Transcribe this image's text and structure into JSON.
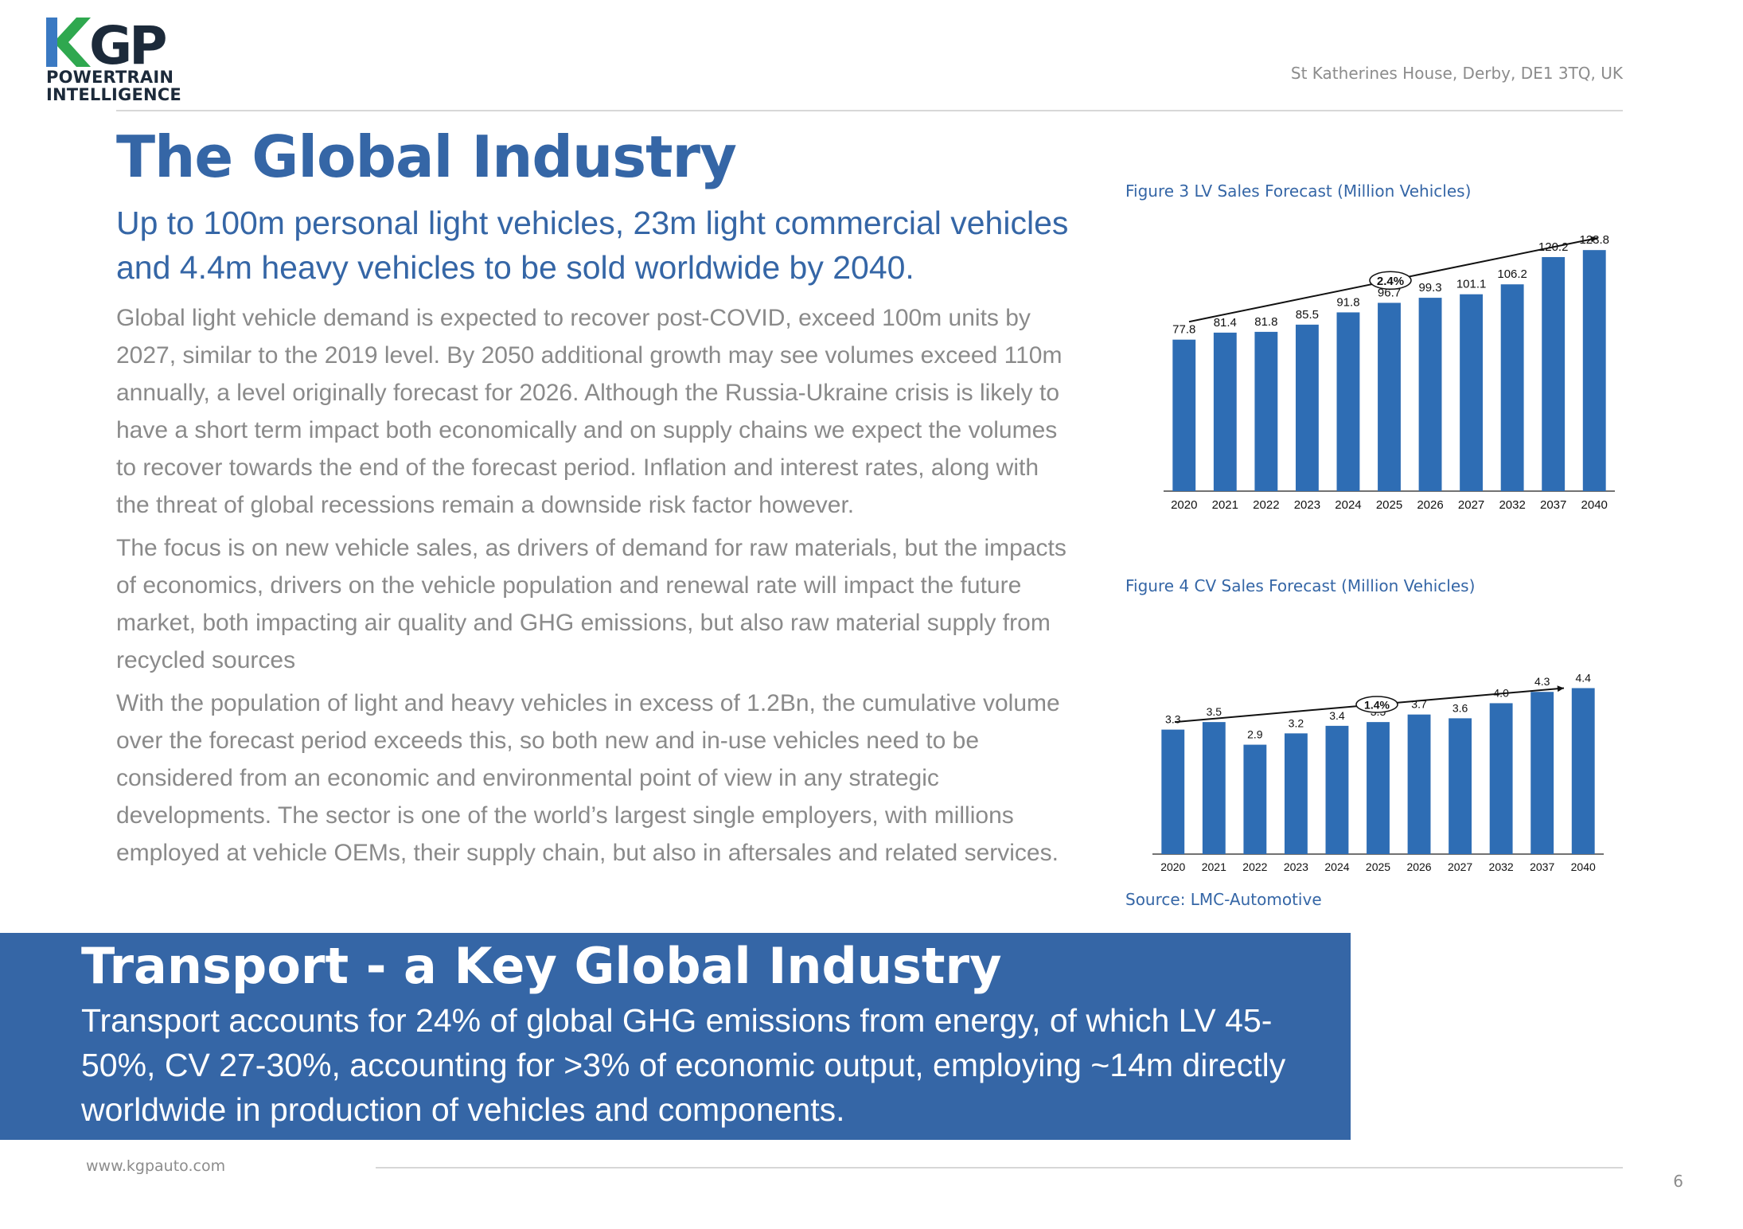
{
  "logo": {
    "mark_text": "KGP",
    "line1": "POWERTRAIN",
    "line2": "INTELLIGENCE",
    "colors": {
      "k_green": "#2fa84f",
      "navy": "#1c2a3a",
      "blue": "#3a79c2"
    }
  },
  "header": {
    "address": "St Katherines House, Derby, DE1 3TQ, UK"
  },
  "main": {
    "title": "The Global Industry",
    "subtitle": "Up to 100m personal light vehicles, 23m light commercial vehicles and 4.4m heavy vehicles to be sold worldwide by 2040.",
    "paragraphs": [
      "Global light vehicle demand is expected to recover post-COVID, exceed 100m units by 2027, similar to the 2019 level. By 2050 additional growth may see volumes exceed 110m annually, a level originally forecast for 2026.  Although the Russia-Ukraine crisis is likely to have a short term impact both economically and on supply chains we expect the volumes to recover towards the end of the forecast period.  Inflation and interest rates, along with the threat of global recessions remain a downside risk factor however.",
      "The focus is on new vehicle sales, as drivers of demand for raw materials, but the impacts of economics, drivers on the vehicle population and renewal rate will impact the future market, both impacting air quality and GHG emissions, but also raw material supply from recycled sources",
      "With the population of light and heavy vehicles in excess of 1.2Bn, the cumulative volume over the forecast period exceeds this, so both new and in-use vehicles need to be considered from an economic and environmental point of view in any strategic developments.  The sector is one of the world’s largest single employers, with millions employed at vehicle OEMs, their supply chain, but also in aftersales and related services."
    ]
  },
  "figures": {
    "fig3_caption": "Figure 3 LV Sales Forecast (Million Vehicles)",
    "fig4_caption": "Figure 4 CV Sales Forecast (Million Vehicles)",
    "source": "Source: LMC-Automotive"
  },
  "chart_data": [
    {
      "type": "bar",
      "categories": [
        "2020",
        "2021",
        "2022",
        "2023",
        "2024",
        "2025",
        "2026",
        "2027",
        "2032",
        "2037",
        "2040"
      ],
      "values": [
        77.8,
        81.4,
        81.8,
        85.5,
        91.8,
        96.7,
        99.3,
        101.1,
        106.2,
        120.2,
        123.8
      ],
      "trend_label": "2.4%",
      "ylim": [
        0,
        130
      ],
      "bar_color": "#2e6db4",
      "grid": false,
      "title": "",
      "xlabel": "",
      "ylabel": ""
    },
    {
      "type": "bar",
      "categories": [
        "2020",
        "2021",
        "2022",
        "2023",
        "2024",
        "2025",
        "2026",
        "2027",
        "2032",
        "2037",
        "2040"
      ],
      "values": [
        3.3,
        3.5,
        2.9,
        3.2,
        3.4,
        3.5,
        3.7,
        3.6,
        4.0,
        4.3,
        4.4
      ],
      "trend_label": "1.4%",
      "ylim": [
        0,
        4.6
      ],
      "bar_color": "#2e6db4",
      "grid": false,
      "title": "",
      "xlabel": "",
      "ylabel": ""
    }
  ],
  "banner": {
    "title": "Transport - a Key Global Industry",
    "text": "Transport accounts for 24% of global GHG emissions from energy, of which LV 45-50%, CV 27-30%, accounting for >3% of economic output, employing  ~14m directly worldwide in production of vehicles and components.",
    "background": "#3566a6"
  },
  "footer": {
    "website": "www.kgpauto.com",
    "page_number": "6"
  }
}
